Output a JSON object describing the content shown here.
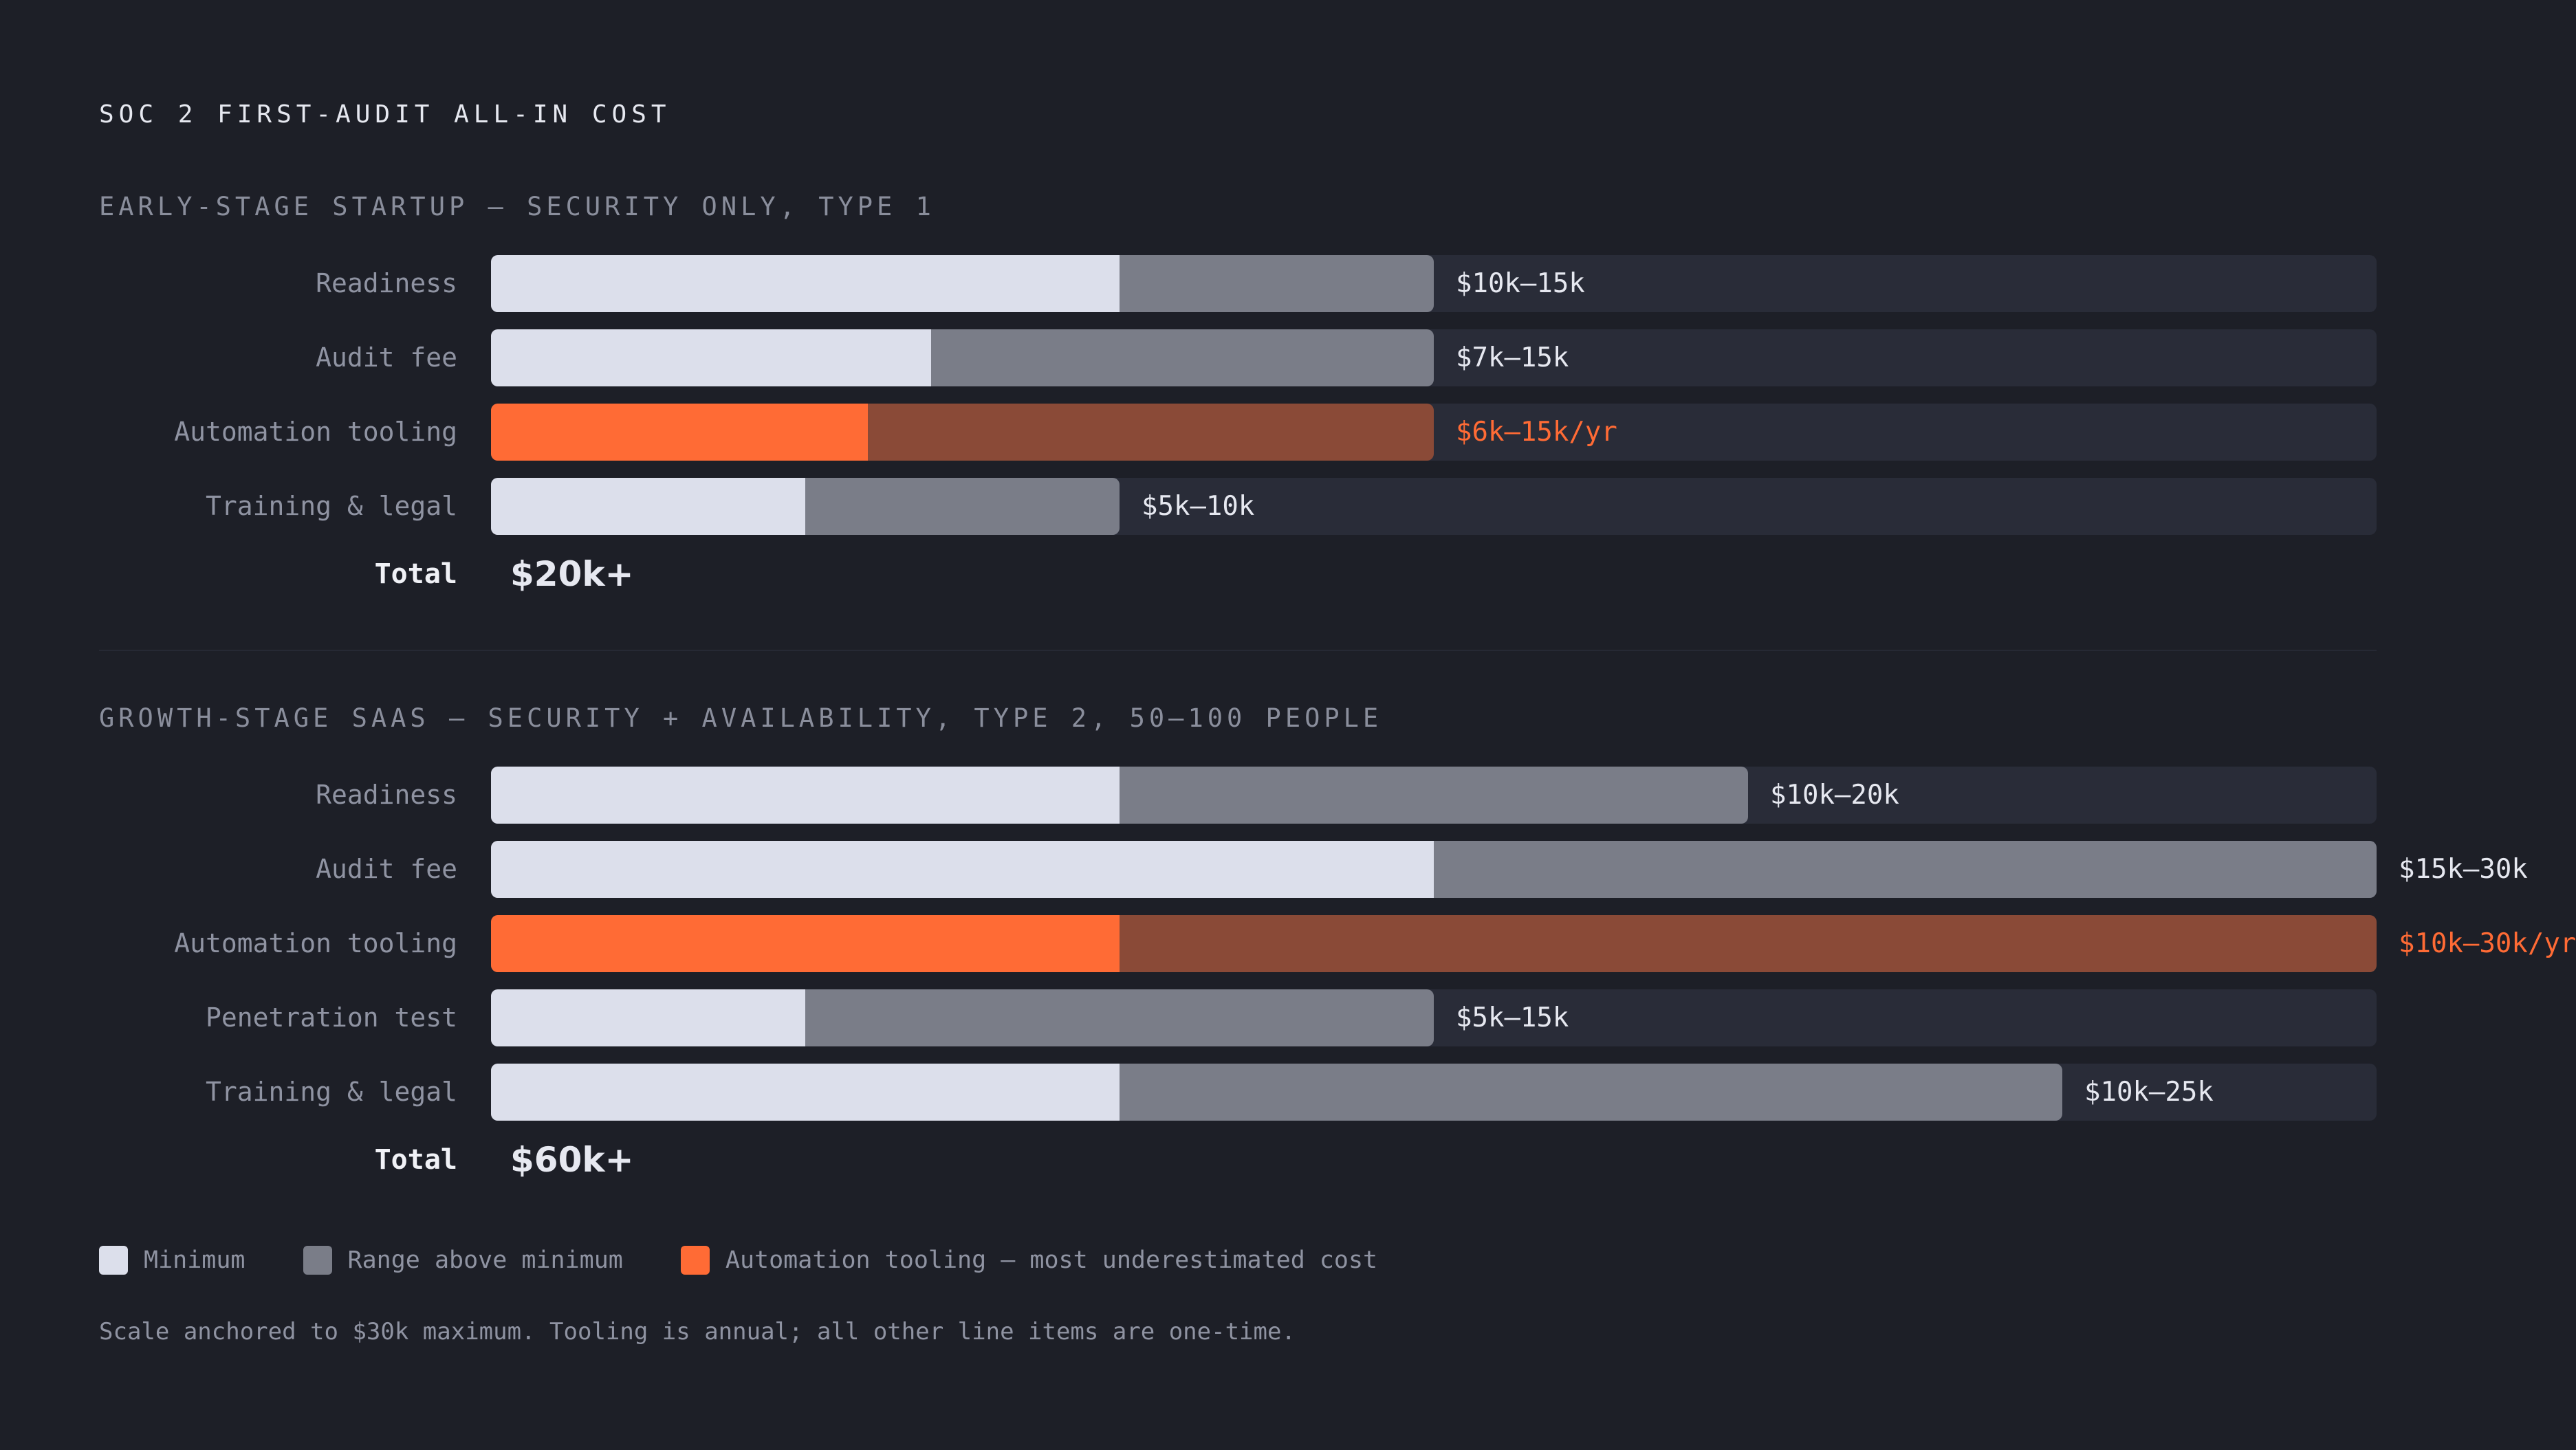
{
  "title": "SOC 2 FIRST-AUDIT ALL-IN COST",
  "colors": {
    "background": "#1d1f27",
    "track": "#292c38",
    "minimum": "#dcdfeb",
    "range": "#7a7d88",
    "tooling_min": "#ff6b35",
    "tooling_range": "#8a4a37",
    "tooling_text": "#ff6b35"
  },
  "chart_data": [
    {
      "type": "bar",
      "orientation": "horizontal",
      "stacked": true,
      "title": "EARLY-STAGE STARTUP — SECURITY ONLY, TYPE 1",
      "xlim": [
        0,
        30
      ],
      "unit": "$k",
      "categories": [
        "Readiness",
        "Audit fee",
        "Automation tooling",
        "Training & legal"
      ],
      "min": [
        10,
        7,
        6,
        5
      ],
      "max": [
        15,
        15,
        15,
        10
      ],
      "value_labels": [
        "$10k–15k",
        "$7k–15k",
        "$6k–15k/yr",
        "$5k–10k"
      ],
      "highlight": [
        false,
        false,
        true,
        false
      ],
      "total_label": "Total",
      "total_value": "$20k+"
    },
    {
      "type": "bar",
      "orientation": "horizontal",
      "stacked": true,
      "title": "GROWTH-STAGE SAAS — SECURITY + AVAILABILITY, TYPE 2, 50–100 PEOPLE",
      "xlim": [
        0,
        30
      ],
      "unit": "$k",
      "categories": [
        "Readiness",
        "Audit fee",
        "Automation tooling",
        "Penetration test",
        "Training & legal"
      ],
      "min": [
        10,
        15,
        10,
        5,
        10
      ],
      "max": [
        20,
        30,
        30,
        15,
        25
      ],
      "value_labels": [
        "$10k–20k",
        "$15k–30k",
        "$10k–30k/yr",
        "$5k–15k",
        "$10k–25k"
      ],
      "highlight": [
        false,
        false,
        true,
        false,
        false
      ],
      "total_label": "Total",
      "total_value": "$60k+"
    }
  ],
  "legend": [
    {
      "label": "Minimum",
      "color": "#dcdfeb"
    },
    {
      "label": "Range above minimum",
      "color": "#7a7d88"
    },
    {
      "label": "Automation tooling — most underestimated cost",
      "color": "#ff6b35"
    }
  ],
  "footnote": "Scale anchored to $30k maximum. Tooling is annual; all other line items are one-time."
}
